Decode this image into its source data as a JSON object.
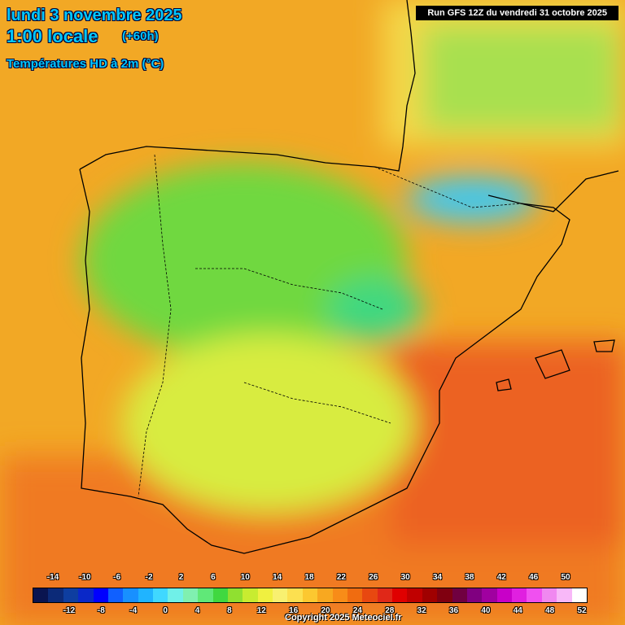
{
  "header": {
    "date": "lundi 3 novembre 2025",
    "time": "1:00 locale",
    "lead": "(+60h)",
    "parameter": "Températures HD à 2m (°C)",
    "run": "Run GFS 12Z du vendredi 31 octobre 2025"
  },
  "footer": {
    "copyright": "Copyright 2025 Meteociel.fr"
  },
  "legend": {
    "colors": [
      "#0a1450",
      "#0c2a78",
      "#0e3ea0",
      "#0a28c8",
      "#0000ff",
      "#1060ff",
      "#1890ff",
      "#20b4ff",
      "#40d8ff",
      "#70f0e8",
      "#80f0b0",
      "#60e878",
      "#40d840",
      "#90e030",
      "#c8ec30",
      "#f0f040",
      "#f8f070",
      "#fce050",
      "#fcc830",
      "#f8a820",
      "#f88c18",
      "#f06c10",
      "#e84810",
      "#e02818",
      "#e00000",
      "#c00000",
      "#a00000",
      "#800010",
      "#700040",
      "#800080",
      "#a000a0",
      "#c800c8",
      "#e020e0",
      "#f050f0",
      "#f088f0",
      "#f8b8f8",
      "#ffffff"
    ],
    "top_ticks": [
      "-14",
      "-10",
      "-6",
      "-2",
      "2",
      "6",
      "10",
      "14",
      "18",
      "22",
      "26",
      "30",
      "34",
      "38",
      "42",
      "46",
      "50"
    ],
    "bottom_ticks": [
      "-12",
      "-8",
      "-4",
      "0",
      "4",
      "8",
      "12",
      "16",
      "20",
      "24",
      "28",
      "32",
      "36",
      "40",
      "44",
      "48",
      "52"
    ]
  },
  "map": {
    "land_color": "#8cdc50",
    "sea_color": "#f0a028",
    "hot_sea_color": "#f06a20",
    "cold_spot_color": "#50c8f0"
  }
}
